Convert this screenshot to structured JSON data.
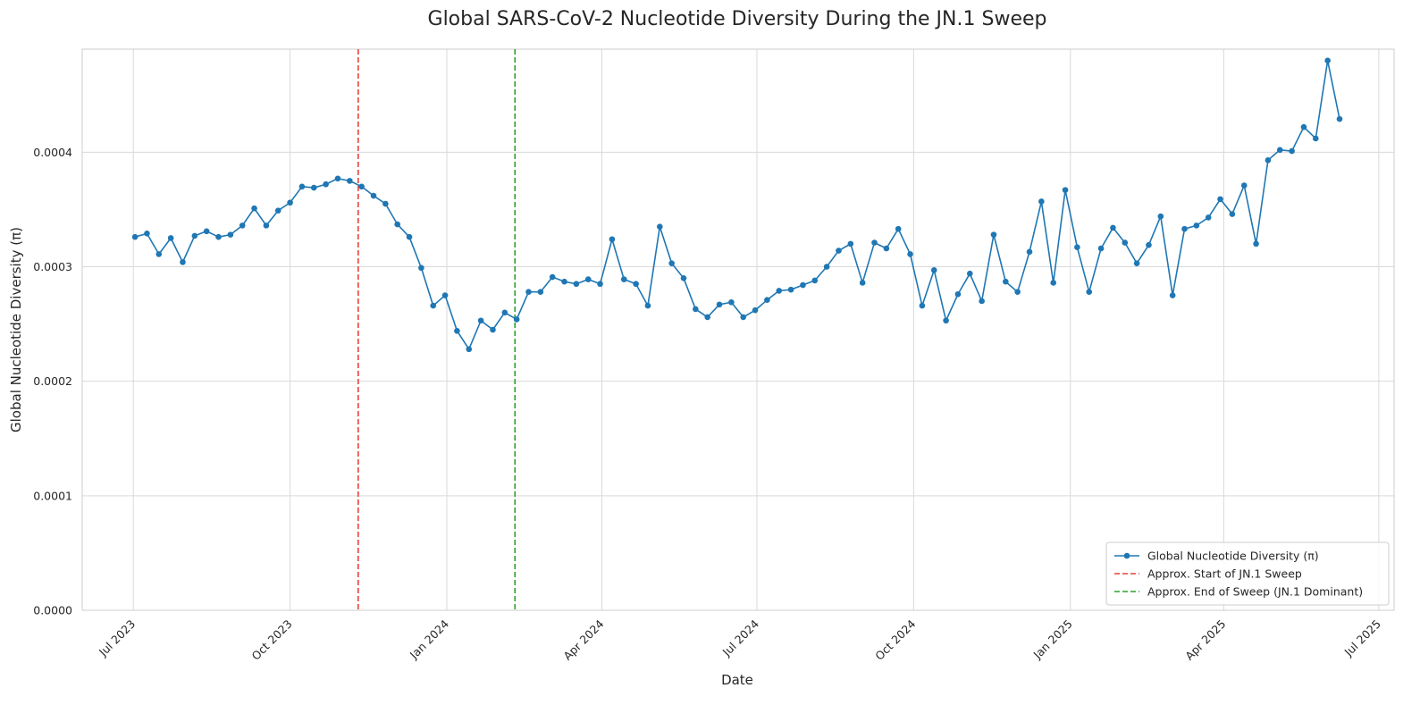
{
  "chart_data": {
    "type": "line",
    "title": "Global SARS-CoV-2 Nucleotide Diversity During the JN.1 Sweep",
    "xlabel": "Date",
    "ylabel": "Global Nucleotide Diversity (π)",
    "xlim": [
      "2023-06-01",
      "2025-07-10"
    ],
    "ylim": [
      0,
      0.00049
    ],
    "x_ticks": [
      {
        "date": "2023-07-01",
        "label": "Jul 2023"
      },
      {
        "date": "2023-10-01",
        "label": "Oct 2023"
      },
      {
        "date": "2024-01-01",
        "label": "Jan 2024"
      },
      {
        "date": "2024-04-01",
        "label": "Apr 2024"
      },
      {
        "date": "2024-07-01",
        "label": "Jul 2024"
      },
      {
        "date": "2024-10-01",
        "label": "Oct 2024"
      },
      {
        "date": "2025-01-01",
        "label": "Jan 2025"
      },
      {
        "date": "2025-04-01",
        "label": "Apr 2025"
      },
      {
        "date": "2025-07-01",
        "label": "Jul 2025"
      }
    ],
    "y_ticks": [
      {
        "value": 0,
        "label": "0.0000"
      },
      {
        "value": 0.0001,
        "label": "0.0001"
      },
      {
        "value": 0.0002,
        "label": "0.0002"
      },
      {
        "value": 0.0003,
        "label": "0.0003"
      },
      {
        "value": 0.0004,
        "label": "0.0004"
      }
    ],
    "grid": true,
    "legend_position": "lower-right",
    "series": [
      {
        "name": "Global Nucleotide Diversity (π)",
        "color": "#1f77b4",
        "points": [
          [
            "2023-07-02",
            0.000326
          ],
          [
            "2023-07-09",
            0.000329
          ],
          [
            "2023-07-16",
            0.000311
          ],
          [
            "2023-07-23",
            0.000325
          ],
          [
            "2023-07-30",
            0.000304
          ],
          [
            "2023-08-06",
            0.000327
          ],
          [
            "2023-08-13",
            0.000331
          ],
          [
            "2023-08-20",
            0.000326
          ],
          [
            "2023-08-27",
            0.000328
          ],
          [
            "2023-09-03",
            0.000336
          ],
          [
            "2023-09-10",
            0.000351
          ],
          [
            "2023-09-17",
            0.000336
          ],
          [
            "2023-09-24",
            0.000349
          ],
          [
            "2023-10-01",
            0.000356
          ],
          [
            "2023-10-08",
            0.00037
          ],
          [
            "2023-10-15",
            0.000369
          ],
          [
            "2023-10-22",
            0.000372
          ],
          [
            "2023-10-29",
            0.000377
          ],
          [
            "2023-11-05",
            0.000375
          ],
          [
            "2023-11-12",
            0.00037
          ],
          [
            "2023-11-19",
            0.000362
          ],
          [
            "2023-11-26",
            0.000355
          ],
          [
            "2023-12-03",
            0.000337
          ],
          [
            "2023-12-10",
            0.000326
          ],
          [
            "2023-12-17",
            0.000299
          ],
          [
            "2023-12-24",
            0.000266
          ],
          [
            "2023-12-31",
            0.000275
          ],
          [
            "2024-01-07",
            0.000244
          ],
          [
            "2024-01-14",
            0.000228
          ],
          [
            "2024-01-21",
            0.000253
          ],
          [
            "2024-01-28",
            0.000245
          ],
          [
            "2024-02-04",
            0.00026
          ],
          [
            "2024-02-11",
            0.000254
          ],
          [
            "2024-02-18",
            0.000278
          ],
          [
            "2024-02-25",
            0.000278
          ],
          [
            "2024-03-03",
            0.000291
          ],
          [
            "2024-03-10",
            0.000287
          ],
          [
            "2024-03-17",
            0.000285
          ],
          [
            "2024-03-24",
            0.000289
          ],
          [
            "2024-03-31",
            0.000285
          ],
          [
            "2024-04-07",
            0.000324
          ],
          [
            "2024-04-14",
            0.000289
          ],
          [
            "2024-04-21",
            0.000285
          ],
          [
            "2024-04-28",
            0.000266
          ],
          [
            "2024-05-05",
            0.000335
          ],
          [
            "2024-05-12",
            0.000303
          ],
          [
            "2024-05-19",
            0.00029
          ],
          [
            "2024-05-26",
            0.000263
          ],
          [
            "2024-06-02",
            0.000256
          ],
          [
            "2024-06-09",
            0.000267
          ],
          [
            "2024-06-16",
            0.000269
          ],
          [
            "2024-06-23",
            0.000256
          ],
          [
            "2024-06-30",
            0.000262
          ],
          [
            "2024-07-07",
            0.000271
          ],
          [
            "2024-07-14",
            0.000279
          ],
          [
            "2024-07-21",
            0.00028
          ],
          [
            "2024-07-28",
            0.000284
          ],
          [
            "2024-08-04",
            0.000288
          ],
          [
            "2024-08-11",
            0.0003
          ],
          [
            "2024-08-18",
            0.000314
          ],
          [
            "2024-08-25",
            0.00032
          ],
          [
            "2024-09-01",
            0.000286
          ],
          [
            "2024-09-08",
            0.000321
          ],
          [
            "2024-09-15",
            0.000316
          ],
          [
            "2024-09-22",
            0.000333
          ],
          [
            "2024-09-29",
            0.000311
          ],
          [
            "2024-10-06",
            0.000266
          ],
          [
            "2024-10-13",
            0.000297
          ],
          [
            "2024-10-20",
            0.000253
          ],
          [
            "2024-10-27",
            0.000276
          ],
          [
            "2024-11-03",
            0.000294
          ],
          [
            "2024-11-10",
            0.00027
          ],
          [
            "2024-11-17",
            0.000328
          ],
          [
            "2024-11-24",
            0.000287
          ],
          [
            "2024-12-01",
            0.000278
          ],
          [
            "2024-12-08",
            0.000313
          ],
          [
            "2024-12-15",
            0.000357
          ],
          [
            "2024-12-22",
            0.000286
          ],
          [
            "2024-12-29",
            0.000367
          ],
          [
            "2025-01-05",
            0.000317
          ],
          [
            "2025-01-12",
            0.000278
          ],
          [
            "2025-01-19",
            0.000316
          ],
          [
            "2025-01-26",
            0.000334
          ],
          [
            "2025-02-02",
            0.000321
          ],
          [
            "2025-02-09",
            0.000303
          ],
          [
            "2025-02-16",
            0.000319
          ],
          [
            "2025-02-23",
            0.000344
          ],
          [
            "2025-03-02",
            0.000275
          ],
          [
            "2025-03-09",
            0.000333
          ],
          [
            "2025-03-16",
            0.000336
          ],
          [
            "2025-03-23",
            0.000343
          ],
          [
            "2025-03-30",
            0.000359
          ],
          [
            "2025-04-06",
            0.000346
          ],
          [
            "2025-04-13",
            0.000371
          ],
          [
            "2025-04-20",
            0.00032
          ],
          [
            "2025-04-27",
            0.000393
          ],
          [
            "2025-05-04",
            0.000402
          ],
          [
            "2025-05-11",
            0.000401
          ],
          [
            "2025-05-18",
            0.000422
          ],
          [
            "2025-05-25",
            0.000412
          ],
          [
            "2025-06-01",
            0.00048
          ],
          [
            "2025-06-08",
            0.000429
          ]
        ]
      }
    ],
    "vertical_lines": [
      {
        "date": "2023-11-10",
        "name": "Approx. Start of JN.1 Sweep",
        "color": "#e8413b"
      },
      {
        "date": "2024-02-10",
        "name": "Approx. End of Sweep (JN.1 Dominant)",
        "color": "#2ca02c"
      }
    ]
  }
}
